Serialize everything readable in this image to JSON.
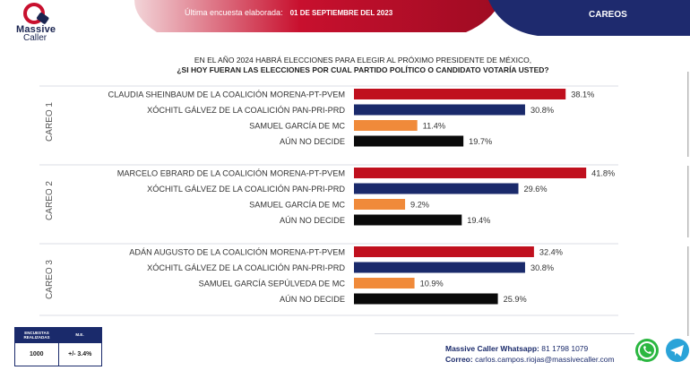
{
  "header": {
    "brand_line1": "Massive",
    "brand_line2": "Caller",
    "meta_label": "Última encuesta elaborada:",
    "meta_date": "01 DE SEPTIEMBRE DEL 2023",
    "section": "CAREOS"
  },
  "question": {
    "line1": "EN EL AÑO 2024 HABRÁ ELECCIONES PARA ELEGIR AL PRÓXIMO PRESIDENTE DE MÉXICO,",
    "line2": "¿SI HOY FUERAN LAS ELECCIONES POR CUAL PARTIDO POLÍTICO O CANDIDATO VOTARÍA USTED?"
  },
  "colors": {
    "morena": "#c0101e",
    "pan": "#1a2a6b",
    "mc": "#f08a3a",
    "undecided": "#0a0a0a",
    "header_red": "#c8102e",
    "header_navy": "#1e2a6e"
  },
  "chart_data": {
    "type": "bar",
    "orientation": "horizontal",
    "value_suffix": "%",
    "groups": [
      {
        "name": "CAREO 1",
        "categories": [
          "CLAUDIA SHEINBAUM DE LA COALICIÓN MORENA-PT-PVEM",
          "XÓCHITL GÁLVEZ DE LA COALICIÓN PAN-PRI-PRD",
          "SAMUEL GARCÍA DE MC",
          "AÚN NO DECIDE"
        ],
        "values": [
          38.1,
          30.8,
          11.4,
          19.7
        ],
        "labels": [
          "38.1%",
          "30.8%",
          "11.4%",
          "19.7%"
        ],
        "color_keys": [
          "morena",
          "pan",
          "mc",
          "undecided"
        ]
      },
      {
        "name": "CAREO 2",
        "categories": [
          "MARCELO EBRARD DE LA COALICIÓN MORENA-PT-PVEM",
          "XÓCHITL GÁLVEZ DE LA COALICIÓN PAN-PRI-PRD",
          "SAMUEL GARCÍA DE MC",
          "AÚN NO DECIDE"
        ],
        "values": [
          41.8,
          29.6,
          9.2,
          19.4
        ],
        "labels": [
          "41.8%",
          "29.6%",
          "9.2%",
          "19.4%"
        ],
        "color_keys": [
          "morena",
          "pan",
          "mc",
          "undecided"
        ]
      },
      {
        "name": "CAREO 3",
        "categories": [
          "ADÁN AUGUSTO DE LA COALICIÓN MORENA-PT-PVEM",
          "XÓCHITL GÁLVEZ DE LA COALICIÓN PAN-PRI-PRD",
          "SAMUEL GARCÍA SEPÚLVEDA DE MC",
          "AÚN NO DECIDE"
        ],
        "values": [
          32.4,
          30.8,
          10.9,
          25.9
        ],
        "labels": [
          "32.4%",
          "30.8%",
          "10.9%",
          "25.9%"
        ],
        "color_keys": [
          "morena",
          "pan",
          "mc",
          "undecided"
        ]
      }
    ],
    "xlim": [
      0,
      45
    ],
    "grid": false,
    "legend": "none"
  },
  "sample": {
    "col1_header": "ENCUESTAS REALIZADAS",
    "col2_header": "M.E.",
    "col1_value": "1000",
    "col2_value": "+/- 3.4%"
  },
  "contact": {
    "whatsapp_label": "Massive Caller Whatsapp:",
    "whatsapp_number": "81 1798 1079",
    "email_label": "Correo:",
    "email": "carlos.campos.riojas@massivecaller.com"
  },
  "icons": {
    "logo": "massive-caller-logo",
    "whatsapp": "whatsapp-icon",
    "telegram": "telegram-icon"
  }
}
